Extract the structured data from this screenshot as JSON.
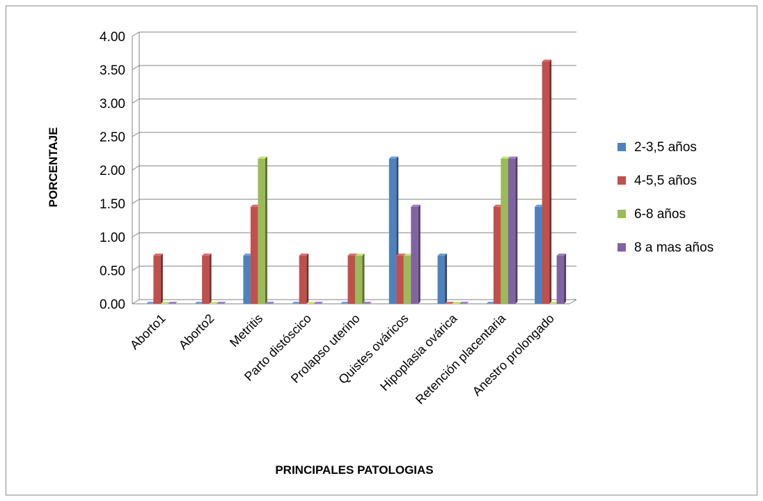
{
  "chart_data": {
    "type": "bar",
    "title": "",
    "xlabel": "PRINCIPALES PATOLOGIAS",
    "ylabel": "PORCENTAJE",
    "ylim": [
      0,
      4
    ],
    "yticks": [
      "0.00",
      "0.50",
      "1.00",
      "1.50",
      "2.00",
      "2.50",
      "3.00",
      "3.50",
      "4.00"
    ],
    "grid": true,
    "legend": "right",
    "categories": [
      "Aborto1",
      "Aborto2",
      "Metritis",
      "Parto distóscico",
      "Prolapso uterino",
      "Quistes ováricos",
      "Hipoplasia ovárica",
      "Retención placentaria",
      "Anestro prolongado"
    ],
    "series": [
      {
        "name": "2-3,5 años",
        "color": "#4f81bd",
        "values": [
          0,
          0,
          0.72,
          0,
          0,
          2.17,
          0.72,
          0,
          1.45
        ]
      },
      {
        "name": "4-5,5 años",
        "color": "#c0504d",
        "values": [
          0.72,
          0.72,
          1.45,
          0.72,
          0.72,
          0.72,
          0,
          1.45,
          3.62
        ]
      },
      {
        "name": "6-8 años",
        "color": "#9bbb59",
        "values": [
          0,
          0,
          2.17,
          0,
          0.72,
          0.72,
          0,
          2.17,
          0
        ]
      },
      {
        "name": "8 a mas años",
        "color": "#8064a2",
        "values": [
          0,
          0,
          0,
          0,
          0,
          1.45,
          0,
          2.17,
          0.72
        ]
      }
    ]
  }
}
